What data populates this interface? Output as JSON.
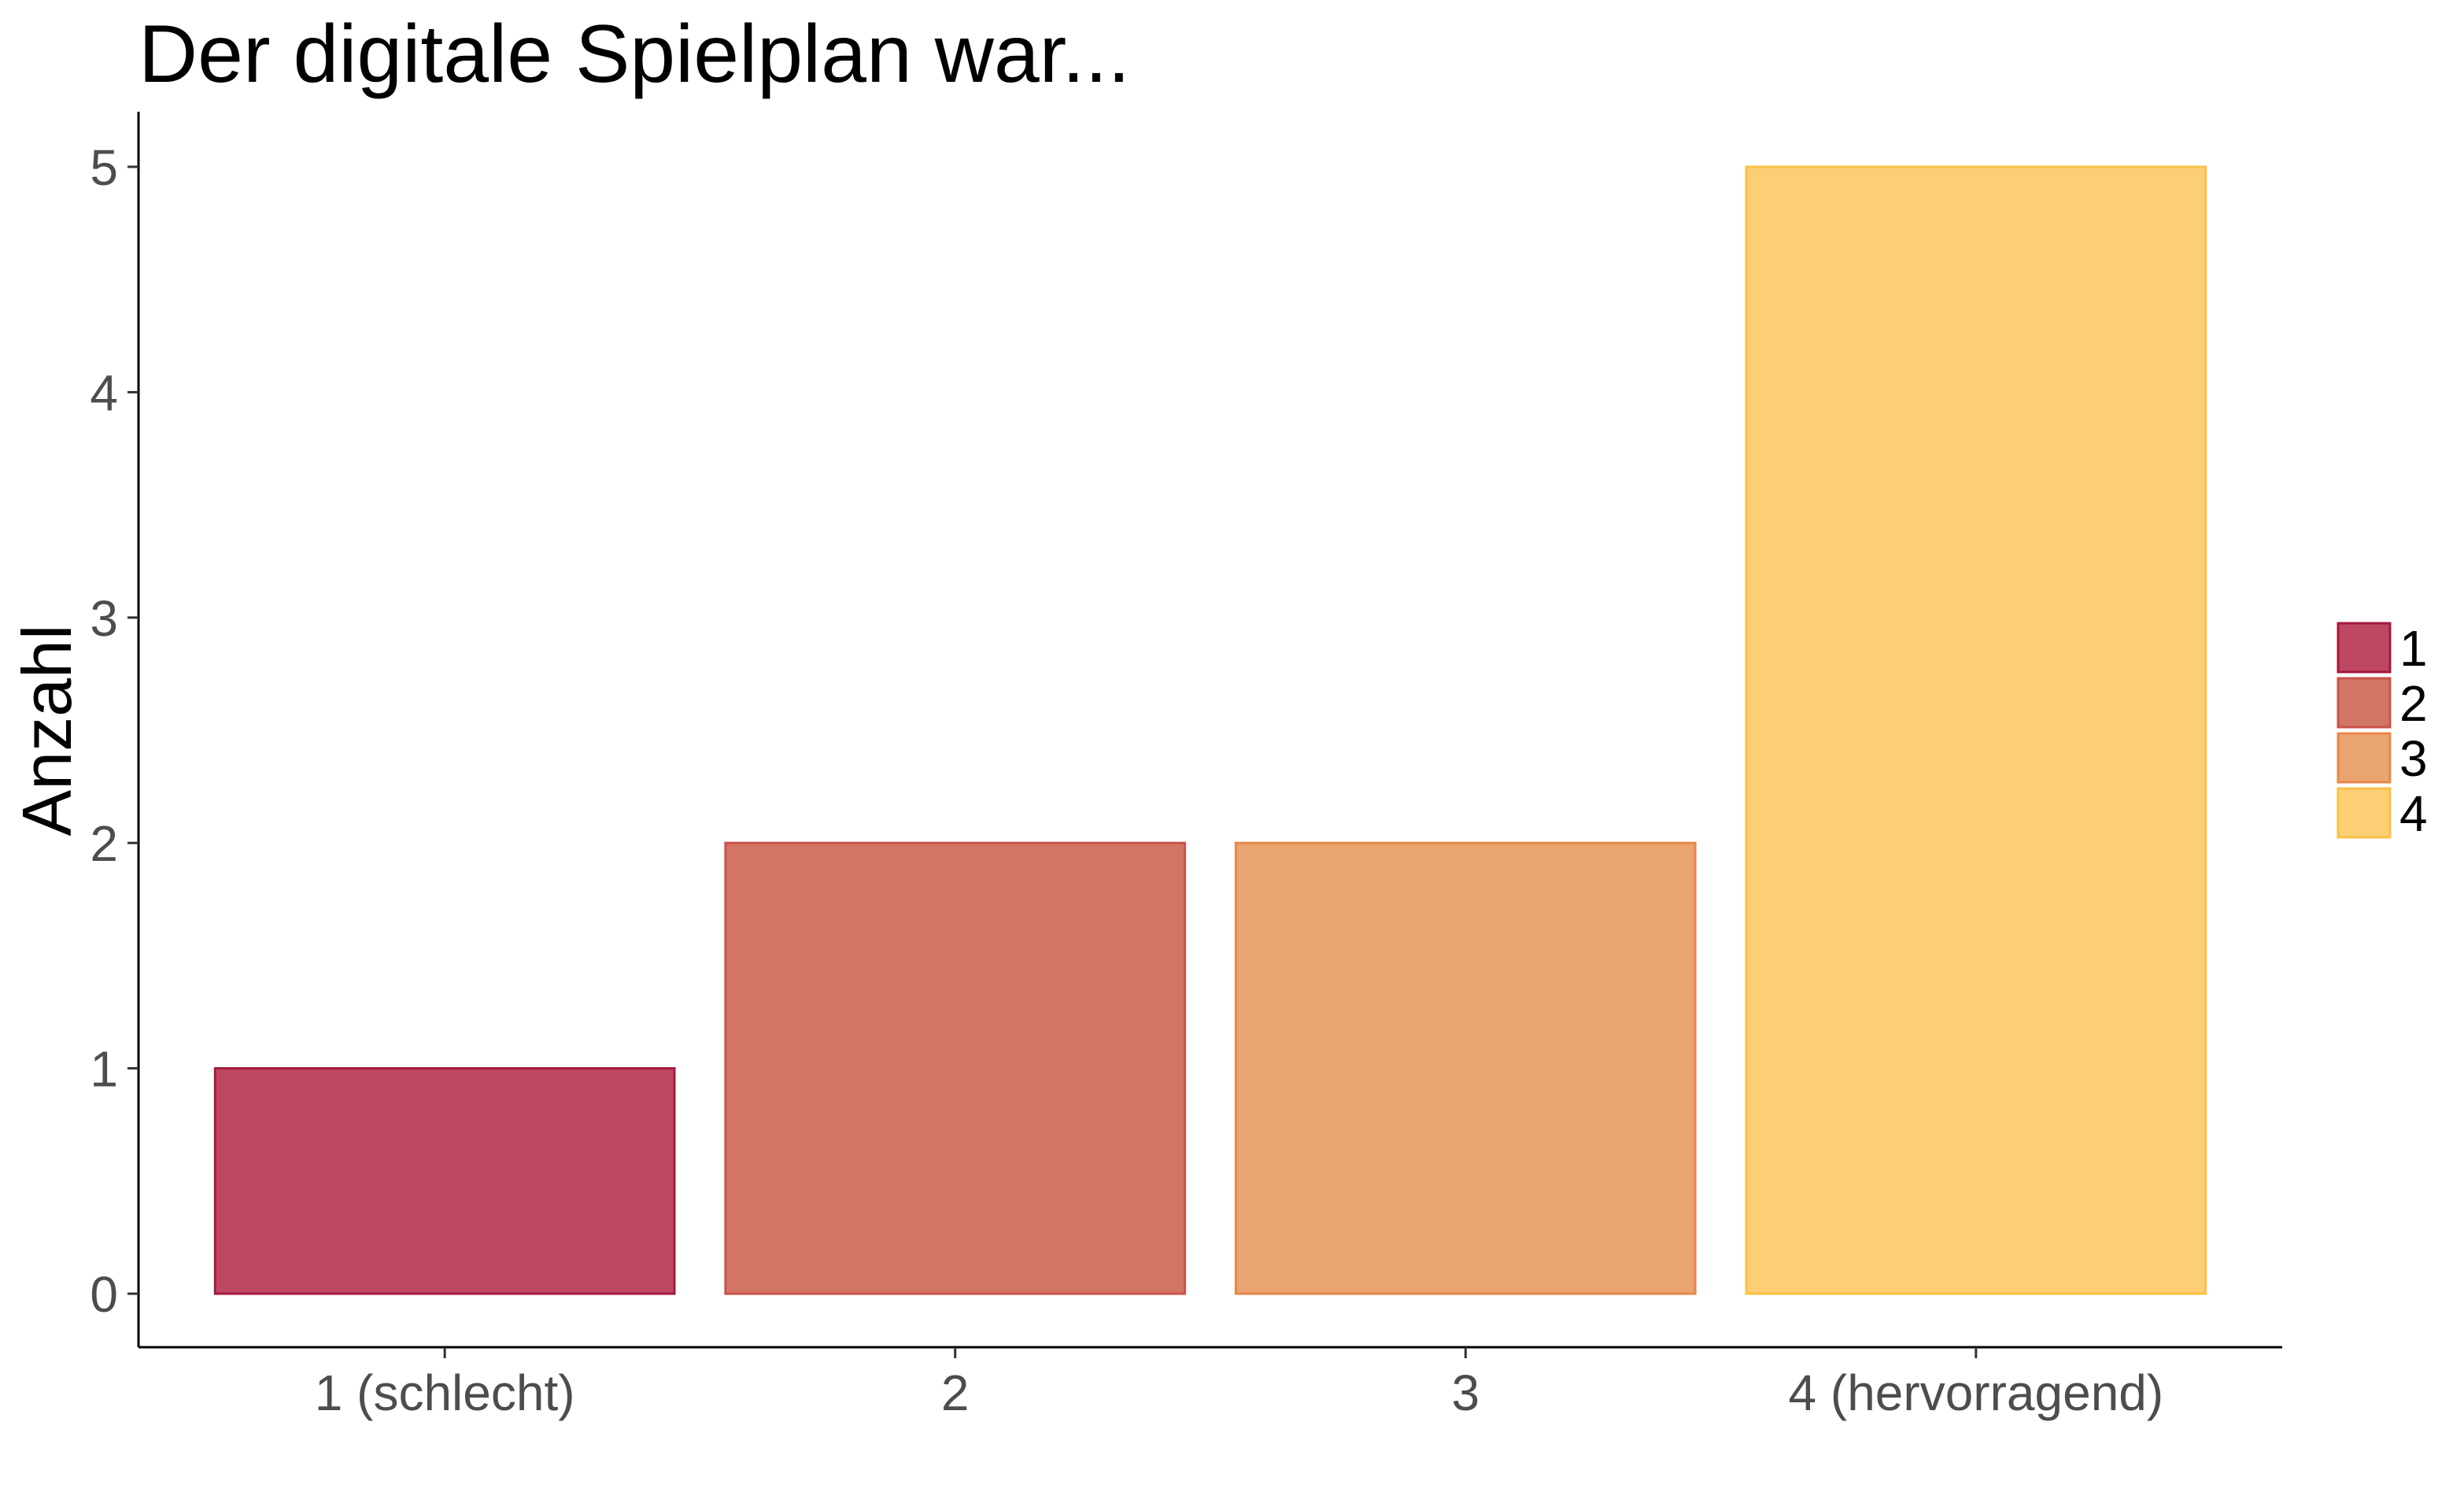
{
  "chart_data": {
    "type": "bar",
    "title": "Der digitale Spielplan war...",
    "xlabel": "",
    "ylabel": "Anzahl",
    "categories": [
      "1 (schlecht)",
      "2",
      "3",
      "4 (hervorragend)"
    ],
    "values": [
      1,
      2,
      2,
      5
    ],
    "ylim": [
      0,
      5
    ],
    "yticks": [
      0,
      1,
      2,
      3,
      4,
      5
    ],
    "grid": false,
    "legend": {
      "placement": "right",
      "entries": [
        "1",
        "2",
        "3",
        "4"
      ]
    },
    "colors": {
      "fill": [
        "#be4862",
        "#d27567",
        "#e9a470",
        "#fccf75"
      ],
      "stroke": [
        "#a41a3f",
        "#c9524a",
        "#e7884a",
        "#f9c145"
      ]
    }
  }
}
